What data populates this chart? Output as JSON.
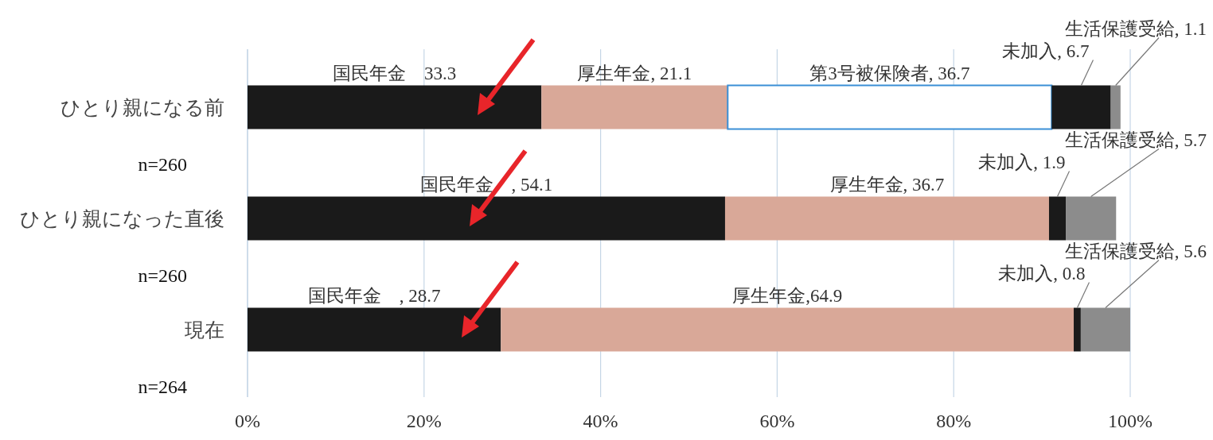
{
  "chart_data": {
    "type": "bar",
    "orientation": "horizontal",
    "stacked": true,
    "categories": [
      "ひとり親になる前",
      "ひとり親になった直後",
      "現在"
    ],
    "series": [
      {
        "color": "#1a1a1a",
        "values": [
          33.3,
          54.1,
          28.7
        ],
        "value_labels": [
          "国民年金　33.3",
          "国民年金　, 54.1",
          "国民年金　, 28.7"
        ]
      },
      {
        "color": "#d9a898",
        "values": [
          21.1,
          36.7,
          64.9
        ],
        "value_labels": [
          "厚生年金, 21.1",
          "厚生年金, 36.7",
          "厚生年金,64.9"
        ]
      },
      {
        "color": "#ffffff",
        "values": [
          36.7,
          null,
          null
        ],
        "value_labels": [
          "第3号被保険者, 36.7",
          null,
          null
        ]
      },
      {
        "color": "#1a1a1a",
        "values": [
          6.7,
          1.9,
          0.8
        ],
        "value_labels": [
          "未加入, 6.7",
          "未加入, 1.9",
          "未加入, 0.8"
        ]
      },
      {
        "color": "#8c8c8c",
        "values": [
          1.1,
          5.7,
          5.6
        ],
        "value_labels": [
          "生活保護受給, 1.1",
          "生活保護受給, 5.7",
          "生活保護受給, 5.6"
        ]
      }
    ],
    "annotations": [
      "n=260",
      "n=260",
      "n=264"
    ],
    "xlim": [
      0,
      100
    ],
    "xticks": [
      {
        "value": 0,
        "label": "0%"
      },
      {
        "value": 20,
        "label": "20%"
      },
      {
        "value": 40,
        "label": "40%"
      },
      {
        "value": 60,
        "label": "60%"
      },
      {
        "value": 80,
        "label": "80%"
      },
      {
        "value": 100,
        "label": "100%"
      }
    ],
    "grid": "x"
  }
}
